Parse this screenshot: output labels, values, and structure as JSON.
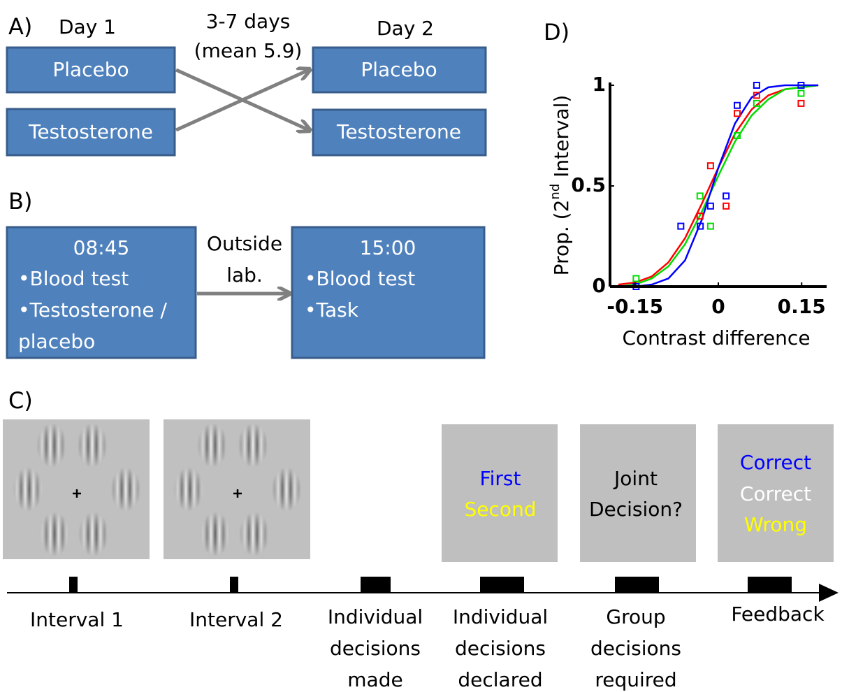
{
  "panel_a": {
    "label": "A)",
    "day1": "Day 1",
    "day2": "Day 2",
    "gap": [
      "3-7 days",
      "(mean 5.9)"
    ],
    "left": [
      "Placebo",
      "Testosterone"
    ],
    "right": [
      "Placebo",
      "Testosterone"
    ]
  },
  "panel_b": {
    "label": "B)",
    "box1": {
      "time": "08:45",
      "lines": [
        "•Blood test",
        "•Testosterone /",
        "placebo"
      ]
    },
    "transition": [
      "Outside",
      "lab."
    ],
    "box2": {
      "time": "15:00",
      "lines": [
        "•Blood test",
        "•Task"
      ]
    }
  },
  "panel_c": {
    "label": "C)",
    "screens": [
      [
        "First",
        "Second"
      ],
      [
        "Joint",
        "Decision?"
      ],
      [
        "Correct",
        "Correct",
        "Wrong"
      ]
    ],
    "events": [
      [
        "Interval 1"
      ],
      [
        "Interval 2"
      ],
      [
        "Individual",
        "decisions",
        "made"
      ],
      [
        "Individual",
        "decisions",
        "declared"
      ],
      [
        "Group",
        "decisions",
        "required"
      ],
      [
        "Feedback"
      ]
    ]
  },
  "chart_data": {
    "type": "scatter",
    "panel_label": "D)",
    "xlabel": "Contrast difference",
    "ylabel": [
      "Prop. (2",
      "nd",
      " Interval)"
    ],
    "xlim": [
      -0.195,
      0.195
    ],
    "ylim": [
      0,
      1
    ],
    "xticks": [
      -0.15,
      0,
      0.15
    ],
    "yticks": [
      0,
      0.5,
      1
    ],
    "series": [
      {
        "color": "#ff0000",
        "x": [
          -0.033,
          -0.014,
          0.014,
          0.034,
          0.069,
          0.149
        ],
        "values": [
          0.35,
          0.6,
          0.4,
          0.86,
          0.95,
          0.91
        ]
      },
      {
        "color": "#00dd00",
        "x": [
          -0.148,
          -0.033,
          -0.014,
          0.034,
          0.069,
          0.149
        ],
        "values": [
          0.04,
          0.45,
          0.3,
          0.75,
          0.91,
          0.96
        ]
      },
      {
        "color": "#0000ff",
        "x": [
          -0.148,
          -0.0675,
          -0.0325,
          -0.014,
          0.014,
          0.034,
          0.069,
          0.149
        ],
        "values": [
          0,
          0.3,
          0.3,
          0.4,
          0.45,
          0.9,
          1,
          1
        ]
      }
    ],
    "fits": {
      "x": [
        -0.18,
        -0.15,
        -0.12,
        -0.09,
        -0.06,
        -0.03,
        0,
        0.03,
        0.06,
        0.09,
        0.12,
        0.15,
        0.18
      ],
      "series": [
        {
          "color": "#ff0000",
          "values": [
            0.01,
            0.02,
            0.05,
            0.12,
            0.24,
            0.41,
            0.59,
            0.76,
            0.88,
            0.95,
            0.98,
            0.99,
            1
          ]
        },
        {
          "color": "#00dd00",
          "values": [
            0,
            0.01,
            0.04,
            0.1,
            0.21,
            0.37,
            0.55,
            0.72,
            0.85,
            0.93,
            0.98,
            0.99,
            1
          ]
        },
        {
          "color": "#0000ff",
          "values": [
            0,
            0,
            0.01,
            0.04,
            0.13,
            0.33,
            0.59,
            0.81,
            0.94,
            0.99,
            1,
            1,
            1
          ]
        }
      ]
    }
  }
}
